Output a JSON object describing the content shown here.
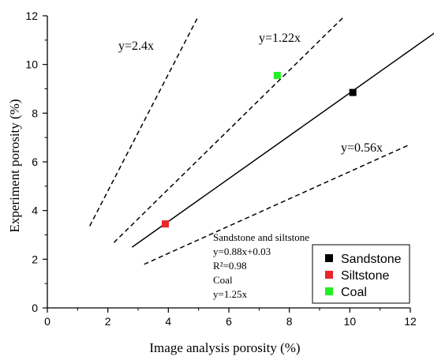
{
  "chart_data": {
    "type": "scatter",
    "title": "",
    "xlabel": "Image analysis porosity (%)",
    "ylabel": "Experiment porosity (%)",
    "xlim": [
      0,
      12
    ],
    "ylim": [
      0,
      12
    ],
    "xticks": [
      "0",
      "2",
      "4",
      "6",
      "8",
      "10",
      "12"
    ],
    "yticks": [
      "0",
      "2",
      "4",
      "6",
      "8",
      "10",
      "12"
    ],
    "grid": false,
    "legend_position": "bottom-right",
    "series": [
      {
        "name": "Sandstone",
        "color": "#000000",
        "points": [
          {
            "x": 10.1,
            "y": 8.85
          }
        ]
      },
      {
        "name": "Siltstone",
        "color": "#e8262b",
        "points": [
          {
            "x": 3.9,
            "y": 3.45
          }
        ]
      },
      {
        "name": "Coal",
        "color": "#22ee22",
        "points": [
          {
            "x": 7.6,
            "y": 9.55
          }
        ]
      }
    ],
    "lines": [
      {
        "label": "y=2.4x",
        "slope": 2.4,
        "intercept": 0,
        "x_range": [
          1.4,
          5.2
        ],
        "style": "dashed"
      },
      {
        "label": "y=1.22x",
        "slope": 1.22,
        "intercept": 0,
        "x_range": [
          2.2,
          9.8
        ],
        "style": "dashed"
      },
      {
        "label": "y=0.56x",
        "slope": 0.56,
        "intercept": 0,
        "x_range": [
          3.2,
          12.0
        ],
        "style": "dashed"
      },
      {
        "label": "",
        "slope": 0.88,
        "intercept": 0.03,
        "x_range": [
          2.8,
          12.8
        ],
        "style": "solid"
      }
    ],
    "annotation_lines": [
      "Sandstone and siltstone",
      "y=0.88x+0.03",
      "R²=0.98",
      "Coal",
      "y=1.25x"
    ]
  }
}
